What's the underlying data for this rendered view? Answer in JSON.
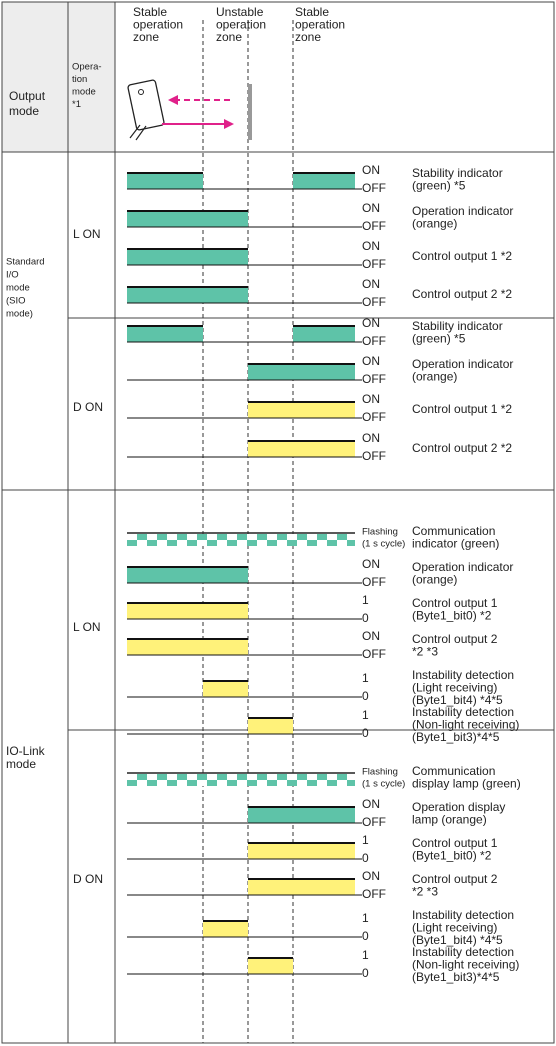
{
  "header": {
    "output_mode": [
      "Output",
      "mode"
    ],
    "operation_mode": [
      "Opera-",
      "tion",
      "mode",
      "*1"
    ],
    "zones": [
      [
        "Stable",
        "operation",
        "zone"
      ],
      [
        "Unstable",
        "operation",
        "zone"
      ],
      [
        "Stable",
        "operation",
        "zone"
      ]
    ]
  },
  "sections": [
    {
      "name": [
        "Standard",
        "I/O",
        "mode",
        "(SIO",
        "mode)"
      ],
      "modes": [
        {
          "name": "L ON",
          "rows": [
            {
              "states": [
                "ON",
                "OFF"
              ],
              "label": [
                "Stability indicator",
                "(green) *5"
              ]
            },
            {
              "states": [
                "ON",
                "OFF"
              ],
              "label": [
                "Operation indicator",
                "(orange)"
              ]
            },
            {
              "states": [
                "ON",
                "OFF"
              ],
              "label": [
                "Control output 1 *2"
              ]
            },
            {
              "states": [
                "ON",
                "OFF"
              ],
              "label": [
                "Control output 2 *2"
              ]
            }
          ]
        },
        {
          "name": "D ON",
          "rows": [
            {
              "states": [
                "ON",
                "OFF"
              ],
              "label": [
                "Stability indicator",
                "(green) *5"
              ]
            },
            {
              "states": [
                "ON",
                "OFF"
              ],
              "label": [
                "Operation indicator",
                "(orange)"
              ]
            },
            {
              "states": [
                "ON",
                "OFF"
              ],
              "label": [
                "Control output 1 *2"
              ]
            },
            {
              "states": [
                "ON",
                "OFF"
              ],
              "label": [
                "Control output 2 *2"
              ]
            }
          ]
        }
      ]
    },
    {
      "name": [
        "IO-Link",
        "mode"
      ],
      "modes": [
        {
          "name": "L ON",
          "rows": [
            {
              "states": [
                "Flashing",
                "(1 s cycle)"
              ],
              "label": [
                "Communication",
                "indicator (green)"
              ]
            },
            {
              "states": [
                "ON",
                "OFF"
              ],
              "label": [
                "Operation indicator",
                "(orange)"
              ]
            },
            {
              "states": [
                "1",
                "0"
              ],
              "label": [
                "Control output 1",
                "(Byte1_bit0) *2"
              ]
            },
            {
              "states": [
                "ON",
                "OFF"
              ],
              "label": [
                "Control output 2",
                "*2 *3"
              ]
            },
            {
              "states": [
                "1",
                "0"
              ],
              "label": [
                "Instability detection",
                "(Light receiving)",
                "(Byte1_bit4) *4*5"
              ]
            },
            {
              "states": [
                "1",
                "0"
              ],
              "label": [
                "Instability detection",
                "(Non-light receiving)",
                "(Byte1_bit3)*4*5"
              ]
            }
          ]
        },
        {
          "name": "D ON",
          "rows": [
            {
              "states": [
                "Flashing",
                "(1 s cycle)"
              ],
              "label": [
                "Communication",
                "display lamp (green)"
              ]
            },
            {
              "states": [
                "ON",
                "OFF"
              ],
              "label": [
                "Operation display",
                "lamp (orange)"
              ]
            },
            {
              "states": [
                "1",
                "0"
              ],
              "label": [
                "Control output 1",
                "(Byte1_bit0) *2"
              ]
            },
            {
              "states": [
                "ON",
                "OFF"
              ],
              "label": [
                "Control output 2",
                "*2 *3"
              ]
            },
            {
              "states": [
                "1",
                "0"
              ],
              "label": [
                "Instability detection",
                "(Light receiving)",
                "(Byte1_bit4) *4*5"
              ]
            },
            {
              "states": [
                "1",
                "0"
              ],
              "label": [
                "Instability detection",
                "(Non-light receiving)",
                "(Byte1_bit3)*4*5"
              ]
            }
          ]
        }
      ]
    }
  ]
}
